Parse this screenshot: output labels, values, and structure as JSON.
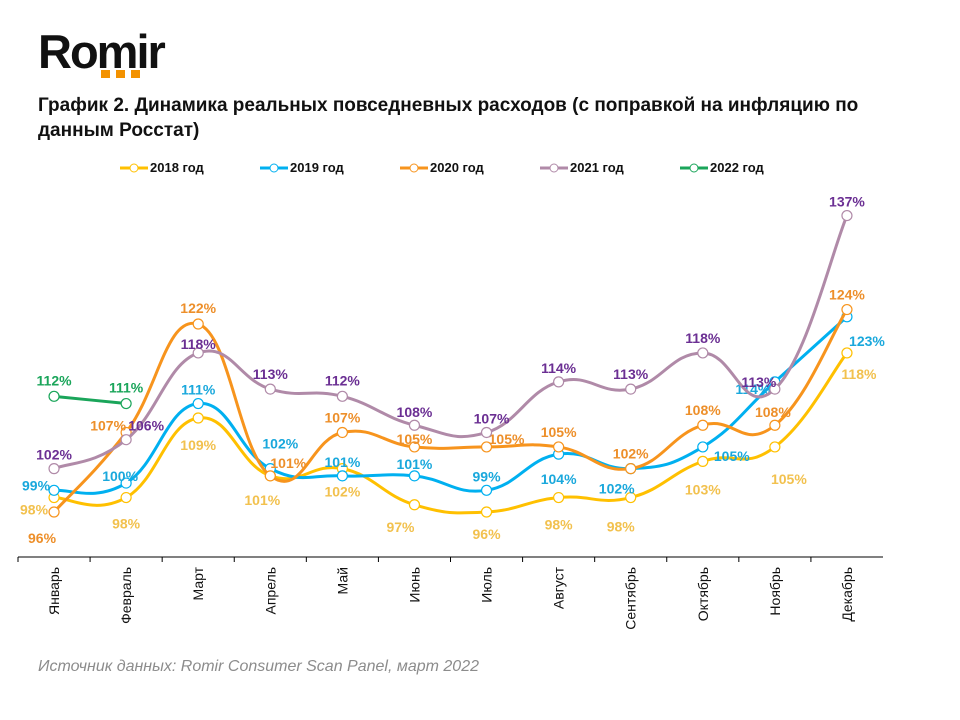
{
  "brand": {
    "logo_text": "Romir",
    "accent_color": "#f39200"
  },
  "header": {
    "title": "График 2. Динамика реальных повседневных расходов (с поправкой на инфляцию по данным Росстат)"
  },
  "footer": {
    "source": "Источник данных: Romir Consumer Scan Panel, март 2022"
  },
  "chart_data": {
    "type": "line",
    "title": "График 2. Динамика реальных повседневных расходов (с поправкой на инфляцию по данным Росстат)",
    "xlabel": "",
    "ylabel": "",
    "categories": [
      "Январь",
      "Февраль",
      "Март",
      "Апрель",
      "Май",
      "Июнь",
      "Июль",
      "Август",
      "Сентябрь",
      "Октябрь",
      "Ноябрь",
      "Декабрь"
    ],
    "ylim": [
      90,
      140
    ],
    "grid": false,
    "legend_position": "top",
    "value_format": "{v}%",
    "smooth": true,
    "series": [
      {
        "name": "2018 год",
        "line_color": "#ffc000",
        "label_color": "#f2c14e",
        "values": [
          98,
          98,
          109,
          101,
          102,
          97,
          96,
          98,
          98,
          103,
          105,
          118
        ]
      },
      {
        "name": "2019 год",
        "line_color": "#00b0f0",
        "label_color": "#1aa8dc",
        "values": [
          99,
          100,
          111,
          102,
          101,
          101,
          99,
          104,
          102,
          105,
          114,
          123
        ]
      },
      {
        "name": "2020 год",
        "line_color": "#f7941d",
        "label_color": "#ed8f2a",
        "values": [
          96,
          107,
          122,
          101,
          107,
          105,
          105,
          105,
          102,
          108,
          108,
          124
        ]
      },
      {
        "name": "2021 год",
        "line_color": "#b08aa8",
        "label_color": "#6b2f93",
        "values": [
          102,
          106,
          118,
          113,
          112,
          108,
          107,
          114,
          113,
          118,
          113,
          137
        ]
      },
      {
        "name": "2022 год",
        "line_color": "#1aa55a",
        "label_color": "#1aa55a",
        "values": [
          112,
          111,
          null,
          null,
          null,
          null,
          null,
          null,
          null,
          null,
          null,
          null
        ]
      }
    ]
  }
}
